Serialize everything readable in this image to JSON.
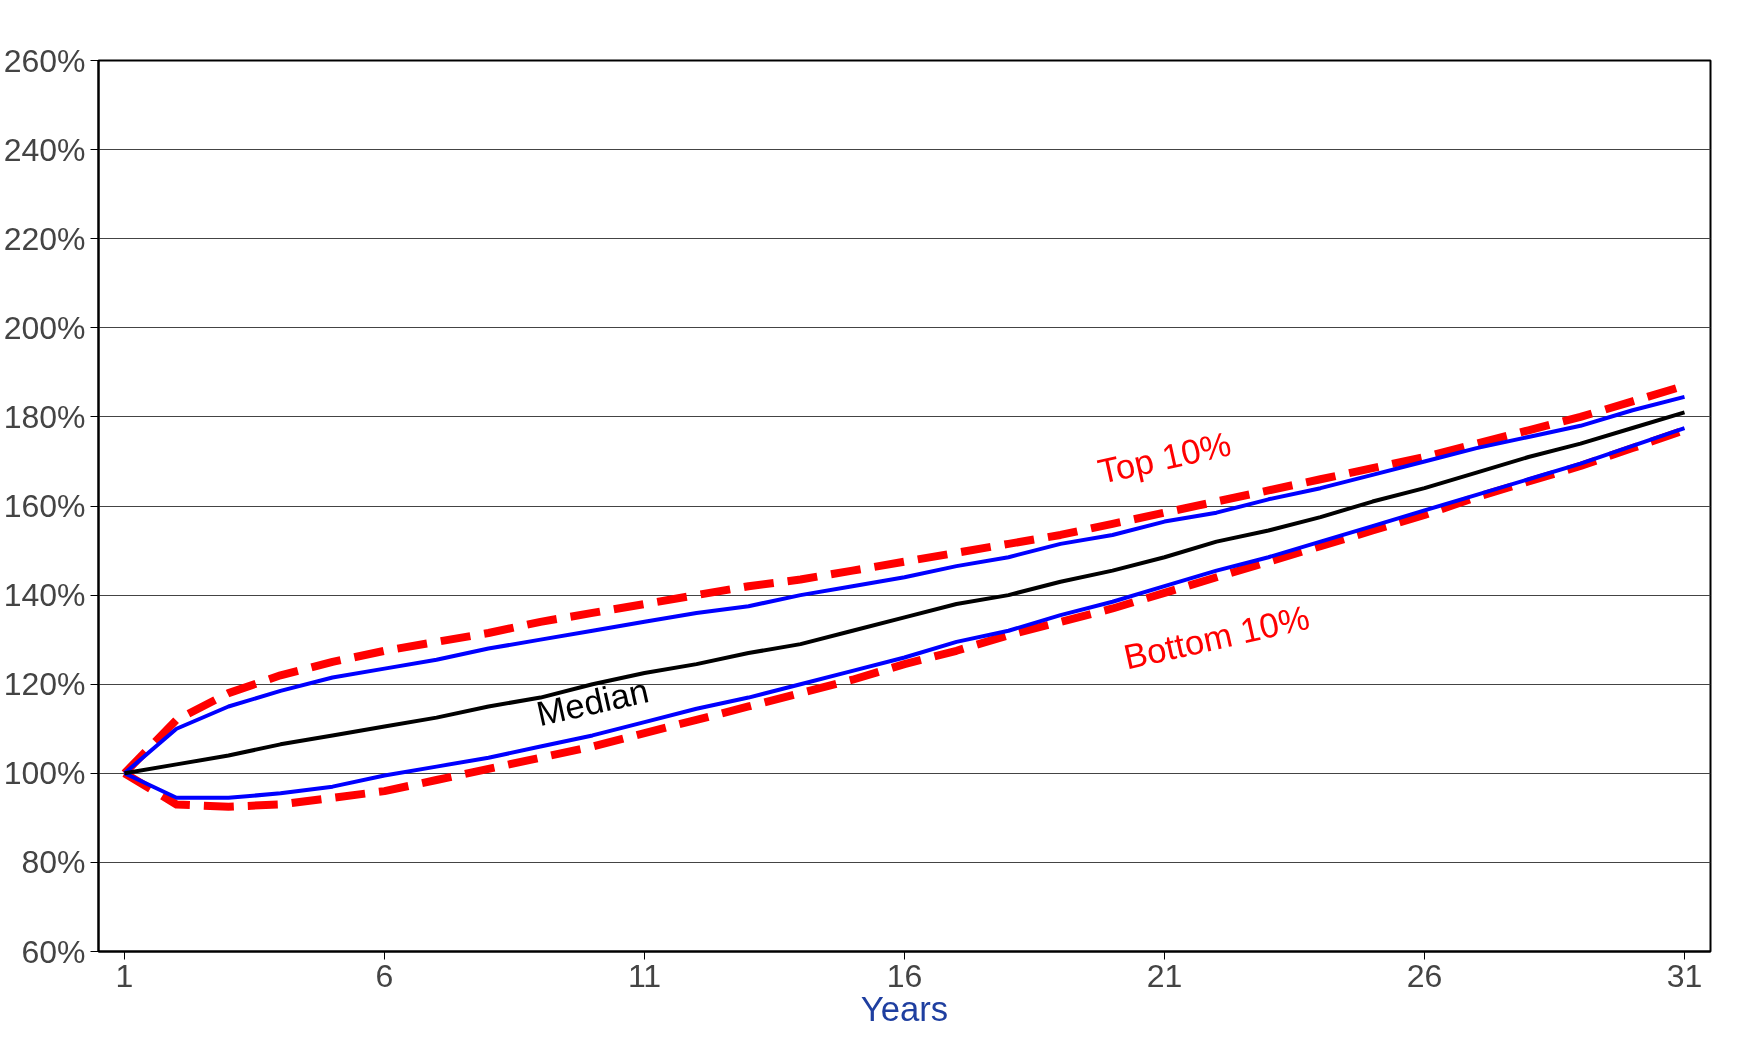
{
  "chart_data": {
    "type": "line",
    "xlabel": "Years",
    "x": [
      1,
      2,
      3,
      4,
      5,
      6,
      7,
      8,
      9,
      10,
      11,
      12,
      13,
      14,
      15,
      16,
      17,
      18,
      19,
      20,
      21,
      22,
      23,
      24,
      25,
      26,
      27,
      28,
      29,
      30,
      31
    ],
    "series": [
      {
        "name": "Top 10%",
        "color": "#ff0000",
        "line_style": "dashed",
        "values": [
          100,
          112,
          118,
          122,
          125,
          127.5,
          129.5,
          131.5,
          134,
          136,
          138,
          140,
          142,
          143.5,
          145.5,
          147.5,
          149.5,
          151.5,
          153.5,
          156,
          158.5,
          161,
          163.5,
          166,
          168.5,
          171,
          174,
          177,
          180,
          183.5,
          187
        ]
      },
      {
        "name": "Bottom 10%",
        "color": "#ff0000",
        "line_style": "dashed",
        "values": [
          100,
          93,
          92.5,
          93,
          94.5,
          96,
          98.5,
          101,
          103.5,
          106,
          109,
          112,
          115,
          118,
          121,
          124.5,
          127.5,
          131,
          134,
          137,
          140.5,
          144,
          147.5,
          151,
          154.5,
          158,
          162,
          165.5,
          169,
          173,
          177
        ]
      },
      {
        "color": "#0000ff",
        "values": [
          100,
          110,
          115,
          118.5,
          121.5,
          123.5,
          125.5,
          128,
          130,
          132,
          134,
          136,
          137.5,
          140,
          142,
          144,
          146.5,
          148.5,
          151.5,
          153.5,
          156.5,
          158.5,
          161.5,
          164,
          167,
          170,
          173,
          175.5,
          178,
          181.5,
          184.5
        ]
      },
      {
        "color": "#0000ff",
        "values": [
          100,
          94.5,
          94.5,
          95.5,
          97,
          99.5,
          101.5,
          103.5,
          106,
          108.5,
          111.5,
          114.5,
          117,
          120,
          123,
          126,
          129.5,
          132,
          135.5,
          138.5,
          142,
          145.5,
          148.5,
          152,
          155.5,
          159,
          162.5,
          166,
          169.5,
          173.5,
          177.5
        ]
      },
      {
        "name": "Median",
        "color": "#000000",
        "values": [
          100,
          102,
          104,
          106.5,
          108.5,
          110.5,
          112.5,
          115,
          117,
          120,
          122.5,
          124.5,
          127,
          129,
          132,
          135,
          138,
          140,
          143,
          145.5,
          148.5,
          152,
          154.5,
          157.5,
          161,
          164,
          167.5,
          171,
          174,
          177.5,
          181
        ]
      }
    ],
    "xlim": [
      0.5,
      31.5
    ],
    "xticks": [
      1,
      6,
      11,
      16,
      21,
      26,
      31
    ],
    "ylim": [
      60,
      260
    ],
    "yticks": [
      {
        "value": 60,
        "label": "60%"
      },
      {
        "value": 80,
        "label": "80%"
      },
      {
        "value": 100,
        "label": "100%"
      },
      {
        "value": 120,
        "label": "120%"
      },
      {
        "value": 140,
        "label": "140%"
      },
      {
        "value": 160,
        "label": "160%"
      },
      {
        "value": 180,
        "label": "180%"
      },
      {
        "value": 200,
        "label": "200%"
      },
      {
        "value": 220,
        "label": "220%"
      },
      {
        "value": 240,
        "label": "240%"
      },
      {
        "value": 260,
        "label": "260%"
      }
    ],
    "grid": "y",
    "marker": "none"
  }
}
